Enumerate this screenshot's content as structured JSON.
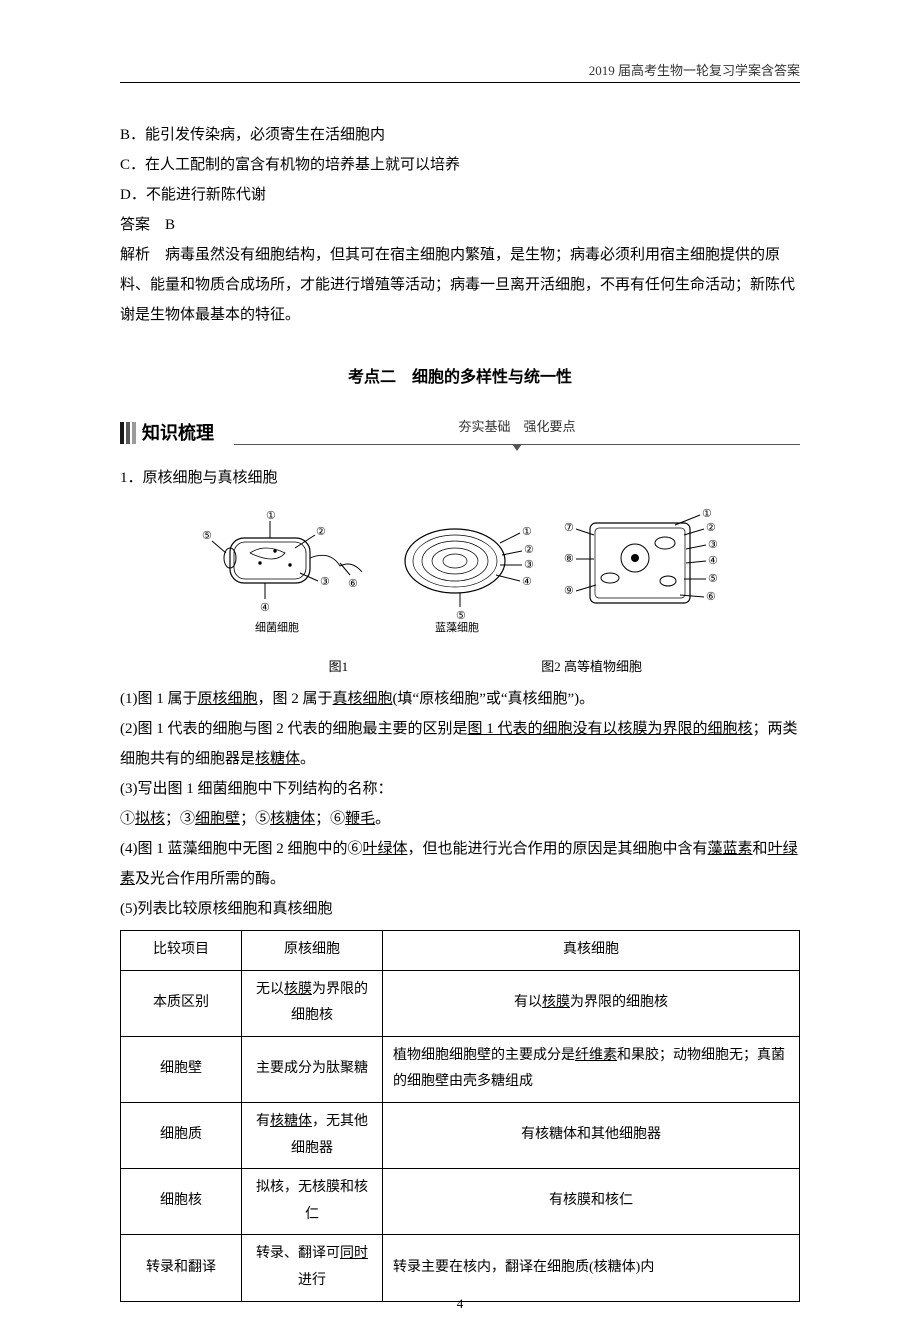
{
  "header_note": "2019 届高考生物一轮复习学案含答案",
  "page_number": "4",
  "options": {
    "b": "B．能引发传染病，必须寄生在活细胞内",
    "c": "C．在人工配制的富含有机物的培养基上就可以培养",
    "d": "D．不能进行新陈代谢"
  },
  "answer_label": "答案　B",
  "explain": "解析　病毒虽然没有细胞结构，但其可在宿主细胞内繁殖，是生物；病毒必须利用宿主细胞提供的原料、能量和物质合成场所，才能进行增殖等活动；病毒一旦离开活细胞，不再有任何生命活动；新陈代谢是生物体最基本的特征。",
  "section_title": "考点二　细胞的多样性与统一性",
  "kz_label": "知识梳理",
  "kz_sub": "夯实基础　强化要点",
  "kz_stripe_colors": [
    "#1a1a1a",
    "#5a5a5a",
    "#9a9a9a"
  ],
  "heading1": "1．原核细胞与真核细胞",
  "figure": {
    "cells": {
      "bacteria": {
        "label": "细菌细胞",
        "callouts": [
          "①",
          "②",
          "③",
          "④",
          "⑤",
          "⑥"
        ]
      },
      "cyanobacteria": {
        "label": "蓝藻细胞",
        "callouts": [
          "①",
          "②",
          "③",
          "④",
          "⑤"
        ]
      },
      "plant": {
        "label": "高等植物细胞",
        "callouts": [
          "①",
          "②",
          "③",
          "④",
          "⑤",
          "⑥",
          "⑦",
          "⑧",
          "⑨"
        ]
      }
    },
    "caption_left": "图1",
    "caption_right": "图2 高等植物细胞",
    "line_color": "#000000",
    "font_size": 11
  },
  "q1_pre": "(1)图 1 属于",
  "q1_u1": "原核细胞",
  "q1_mid": "，图 2 属于",
  "q1_u2": "真核细胞",
  "q1_post": "(填“原核细胞”或“真核细胞”)。",
  "q2_pre": "(2)图 1 代表的细胞与图 2 代表的细胞最主要的区别是",
  "q2_u1": "图 1 代表的细胞没有以核膜为界限的细胞核",
  "q2_mid": "；两类细胞共有的细胞器是",
  "q2_u2": "核糖体",
  "q2_post": "。",
  "q3": "(3)写出图 1 细菌细胞中下列结构的名称：",
  "q3_line": {
    "a": "①",
    "a_u": "拟核",
    "b": "；③",
    "b_u": "细胞壁",
    "c": "；⑤",
    "c_u": "核糖体",
    "d": "；⑥",
    "d_u": "鞭毛",
    "end": "。"
  },
  "q4_pre": "(4)图 1 蓝藻细胞中无图 2 细胞中的⑥",
  "q4_u1": "叶绿体",
  "q4_mid": "，但也能进行光合作用的原因是其细胞中含有",
  "q4_u2": "藻蓝素",
  "q4_mid2": "和",
  "q4_u3": "叶绿素",
  "q4_post": "及光合作用所需的酶。",
  "q5": "(5)列表比较原核细胞和真核细胞",
  "table": {
    "head": [
      "比较项目",
      "原核细胞",
      "真核细胞"
    ],
    "rows": [
      {
        "h": "本质区别",
        "c1_pre": "无以",
        "c1_u": "核膜",
        "c1_post": "为界限的细胞核",
        "c2_pre": "有以",
        "c2_u": "核膜",
        "c2_post": "为界限的细胞核",
        "c2_align": "center"
      },
      {
        "h": "细胞壁",
        "c1_pre": "主要成分为肽聚糖",
        "c1_u": "",
        "c1_post": "",
        "c2_pre": "植物细胞细胞壁的主要成分是",
        "c2_u": "纤维素",
        "c2_post": "和果胶；动物细胞无；真菌的细胞壁由壳多糖组成",
        "c2_align": "left"
      },
      {
        "h": "细胞质",
        "c1_pre": "有",
        "c1_u": "核糖体",
        "c1_post": "，无其他细胞器",
        "c2_pre": "有核糖体和其他细胞器",
        "c2_u": "",
        "c2_post": "",
        "c2_align": "center"
      },
      {
        "h": "细胞核",
        "c1_pre": "拟核，无核膜和核仁",
        "c1_u": "",
        "c1_post": "",
        "c2_pre": "有核膜和核仁",
        "c2_u": "",
        "c2_post": "",
        "c2_align": "center"
      },
      {
        "h": "转录和翻译",
        "c1_pre": "转录、翻译可",
        "c1_u": "同时",
        "c1_post": "进行",
        "c2_pre": "转录主要在核内，翻译在细胞质(核糖体)内",
        "c2_u": "",
        "c2_post": "",
        "c2_align": "left"
      }
    ]
  }
}
